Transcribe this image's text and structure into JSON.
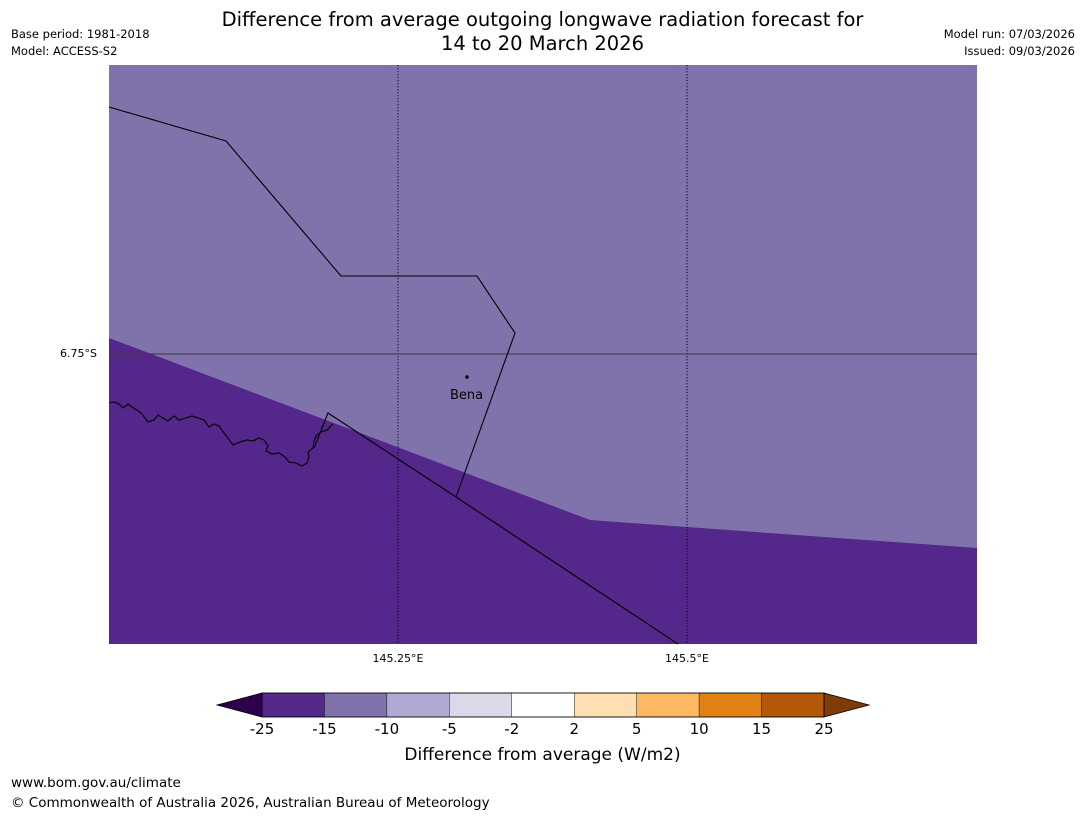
{
  "title": {
    "line1": "Difference from average outgoing longwave radiation forecast for",
    "line2": "14 to 20 March 2026"
  },
  "meta": {
    "base_period": "Base period: 1981-2018",
    "model": "Model: ACCESS-S2",
    "model_run": "Model run: 07/03/2026",
    "issued": "Issued: 09/03/2026"
  },
  "map": {
    "lat_labels": [
      "6.75°S"
    ],
    "lon_labels": [
      "145.25°E",
      "145.5°E"
    ],
    "place": "Bena",
    "colors": {
      "minus15_to_minus10": "#8073ab",
      "minus25_to_minus15": "#54278b",
      "outline": "#000000"
    }
  },
  "legend": {
    "ticks": [
      "-25",
      "-15",
      "-10",
      "-5",
      "-2",
      "2",
      "5",
      "10",
      "15",
      "25"
    ],
    "colors": [
      "#54278b",
      "#8073ab",
      "#b2a9d2",
      "#d9d9ea",
      "#ffffff",
      "#fedfb2",
      "#fdb863",
      "#e08214",
      "#b35806"
    ],
    "under_color": "#2d004b",
    "over_color": "#7f3b08",
    "label": "Difference from average (W/m2)"
  },
  "footer": {
    "url": "www.bom.gov.au/climate",
    "copyright": "© Commonwealth of Australia 2026, Australian Bureau of Meteorology"
  }
}
